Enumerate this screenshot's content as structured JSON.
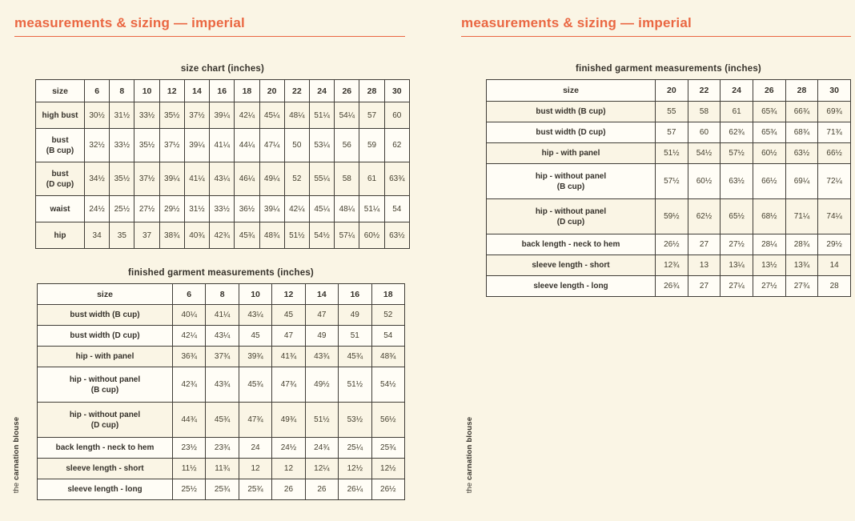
{
  "page_title": "measurements & sizing — imperial",
  "vertical_label": {
    "prefix": "the",
    "name": "carnation blouse"
  },
  "colors": {
    "accent_orange": "#ea6742",
    "background_cream": "#faf5e5",
    "row_alternate_white": "#fffdf6",
    "text_dark": "#36322b",
    "border": "#403d37"
  },
  "left": {
    "size_chart": {
      "title": "size chart (inches)",
      "header": [
        "size",
        "6",
        "8",
        "10",
        "12",
        "14",
        "16",
        "18",
        "20",
        "22",
        "24",
        "26",
        "28",
        "30"
      ],
      "rows": [
        {
          "label": "high bust",
          "values": [
            "30½",
            "31½",
            "33½",
            "35½",
            "37½",
            "39¼",
            "42¼",
            "45¼",
            "48¼",
            "51¼",
            "54¼",
            "57",
            "60"
          ]
        },
        {
          "label": "bust\n(B cup)",
          "values": [
            "32½",
            "33½",
            "35½",
            "37½",
            "39¼",
            "41¼",
            "44¼",
            "47¼",
            "50",
            "53¼",
            "56",
            "59",
            "62"
          ]
        },
        {
          "label": "bust\n(D cup)",
          "values": [
            "34½",
            "35½",
            "37½",
            "39¼",
            "41¼",
            "43¼",
            "46¼",
            "49¼",
            "52",
            "55¼",
            "58",
            "61",
            "63¾"
          ]
        },
        {
          "label": "waist",
          "values": [
            "24½",
            "25½",
            "27½",
            "29½",
            "31½",
            "33½",
            "36½",
            "39¼",
            "42¼",
            "45¼",
            "48¼",
            "51¼",
            "54"
          ]
        },
        {
          "label": "hip",
          "values": [
            "34",
            "35",
            "37",
            "38¾",
            "40¾",
            "42¾",
            "45¾",
            "48¾",
            "51½",
            "54½",
            "57¼",
            "60½",
            "63½"
          ]
        }
      ]
    },
    "finished_garment": {
      "title": "finished garment measurements (inches)",
      "header": [
        "size",
        "6",
        "8",
        "10",
        "12",
        "14",
        "16",
        "18"
      ],
      "rows": [
        {
          "label": "bust width (B cup)",
          "values": [
            "40¼",
            "41¼",
            "43¼",
            "45",
            "47",
            "49",
            "52"
          ]
        },
        {
          "label": "bust width (D cup)",
          "values": [
            "42¼",
            "43¼",
            "45",
            "47",
            "49",
            "51",
            "54"
          ]
        },
        {
          "label": "hip - with panel",
          "values": [
            "36¾",
            "37¾",
            "39¾",
            "41¾",
            "43¾",
            "45¾",
            "48¾"
          ]
        },
        {
          "label": "hip - without panel\n(B cup)",
          "values": [
            "42¾",
            "43¾",
            "45¾",
            "47¾",
            "49½",
            "51½",
            "54½"
          ]
        },
        {
          "label": "hip - without panel\n(D cup)",
          "values": [
            "44¾",
            "45¾",
            "47¾",
            "49¾",
            "51½",
            "53½",
            "56½"
          ]
        },
        {
          "label": "back length - neck to hem",
          "values": [
            "23½",
            "23¾",
            "24",
            "24½",
            "24¾",
            "25¼",
            "25¾"
          ]
        },
        {
          "label": "sleeve length - short",
          "values": [
            "11½",
            "11¾",
            "12",
            "12",
            "12¼",
            "12½",
            "12½"
          ]
        },
        {
          "label": "sleeve length - long",
          "values": [
            "25½",
            "25¾",
            "25¾",
            "26",
            "26",
            "26¼",
            "26½"
          ]
        }
      ]
    }
  },
  "right": {
    "finished_garment": {
      "title": "finished garment measurements (inches)",
      "header": [
        "size",
        "20",
        "22",
        "24",
        "26",
        "28",
        "30"
      ],
      "rows": [
        {
          "label": "bust width (B cup)",
          "values": [
            "55",
            "58",
            "61",
            "65¾",
            "66¾",
            "69¾"
          ]
        },
        {
          "label": "bust width (D cup)",
          "values": [
            "57",
            "60",
            "62¾",
            "65¾",
            "68¾",
            "71¾"
          ]
        },
        {
          "label": "hip - with panel",
          "values": [
            "51½",
            "54½",
            "57½",
            "60½",
            "63½",
            "66½"
          ]
        },
        {
          "label": "hip - without panel\n(B cup)",
          "values": [
            "57½",
            "60½",
            "63½",
            "66½",
            "69¼",
            "72¼"
          ]
        },
        {
          "label": "hip - without panel\n(D cup)",
          "values": [
            "59½",
            "62½",
            "65½",
            "68½",
            "71¼",
            "74¼"
          ]
        },
        {
          "label": "back length - neck to hem",
          "values": [
            "26½",
            "27",
            "27½",
            "28¼",
            "28¾",
            "29½"
          ]
        },
        {
          "label": "sleeve length - short",
          "values": [
            "12¾",
            "13",
            "13¼",
            "13½",
            "13¾",
            "14"
          ]
        },
        {
          "label": "sleeve length - long",
          "values": [
            "26¾",
            "27",
            "27¼",
            "27½",
            "27¾",
            "28"
          ]
        }
      ]
    }
  }
}
